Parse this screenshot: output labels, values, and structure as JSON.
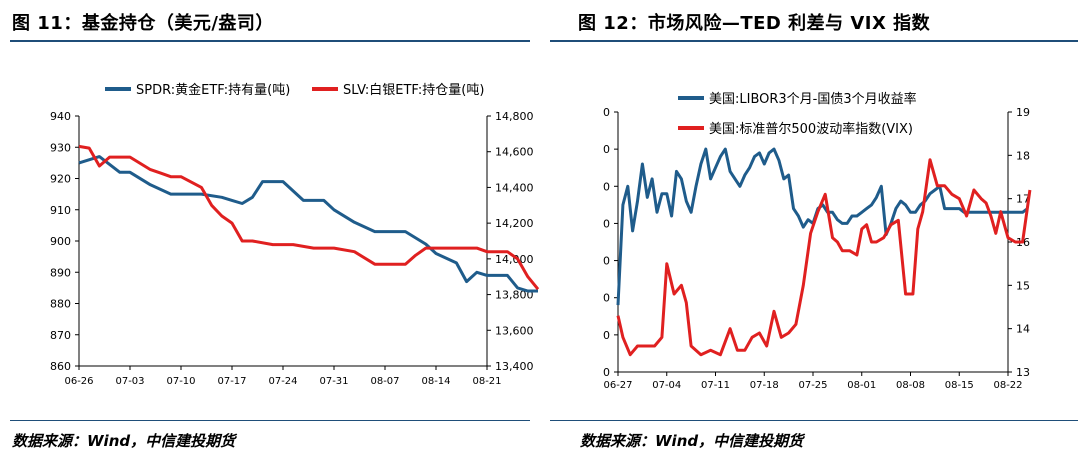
{
  "figures": [
    {
      "title": "图  11：基金持仓（美元/盎司）",
      "source": "数据来源：Wind，中信建投期货",
      "chart_data": {
        "type": "line",
        "categories": [
          "06-26",
          "07-03",
          "07-10",
          "07-17",
          "07-24",
          "07-31",
          "08-07",
          "08-14",
          "08-21"
        ],
        "ylim_left": [
          860,
          940
        ],
        "yticks_left": [
          "940",
          "930",
          "920",
          "910",
          "900",
          "890",
          "880",
          "870",
          "860"
        ],
        "ylim_right": [
          13400,
          14800
        ],
        "yticks_right": [
          "14,800",
          "14,600",
          "14,400",
          "14,200",
          "14,000",
          "13,800",
          "13,600",
          "13,400"
        ],
        "series": [
          {
            "name": "SPDR:黄金ETF:持有量(吨)",
            "color": "#1f5c8b",
            "axis": "left",
            "x": [
              0,
              0.4,
              0.8,
              1.0,
              1.4,
              1.8,
              2.0,
              2.4,
              2.8,
              3.0,
              3.2,
              3.4,
              3.6,
              3.8,
              4.0,
              4.2,
              4.4,
              4.6,
              4.8,
              5.0,
              5.4,
              5.8,
              6.0,
              6.4,
              6.8,
              7.0,
              7.4,
              7.6,
              7.8,
              8.0,
              8.4,
              8.6,
              8.8,
              9.0
            ],
            "y": [
              925,
              927,
              922,
              922,
              918,
              915,
              915,
              915,
              914,
              913,
              912,
              914,
              919,
              919,
              919,
              916,
              913,
              913,
              913,
              910,
              906,
              903,
              903,
              903,
              899,
              896,
              893,
              887,
              890,
              889,
              889,
              885,
              884,
              884
            ]
          },
          {
            "name": "SLV:白银ETF:持仓量(吨)",
            "color": "#e02020",
            "axis": "right",
            "x": [
              0,
              0.2,
              0.4,
              0.6,
              0.8,
              1.0,
              1.4,
              1.6,
              1.8,
              2.0,
              2.4,
              2.6,
              2.8,
              3.0,
              3.2,
              3.4,
              3.8,
              4.2,
              4.6,
              5.0,
              5.4,
              5.8,
              6.0,
              6.4,
              6.6,
              6.8,
              7.0,
              7.4,
              7.8,
              8.0,
              8.2,
              8.4,
              8.6,
              8.8,
              9.0
            ],
            "y": [
              14630,
              14620,
              14520,
              14570,
              14570,
              14570,
              14500,
              14480,
              14460,
              14460,
              14400,
              14300,
              14240,
              14200,
              14100,
              14100,
              14080,
              14080,
              14060,
              14060,
              14040,
              13970,
              13970,
              13970,
              14020,
              14060,
              14060,
              14060,
              14060,
              14040,
              14040,
              14040,
              14000,
              13900,
              13830
            ]
          }
        ]
      }
    },
    {
      "title": "图  12：市场风险—TED 利差与 VIX 指数",
      "source": "数据来源：Wind，中信建投期货",
      "chart_data": {
        "type": "line",
        "categories": [
          "06-27",
          "07-04",
          "07-11",
          "07-18",
          "07-25",
          "08-01",
          "08-08",
          "08-15",
          "08-22"
        ],
        "yticks_left": [
          "0",
          "0",
          "0",
          "0",
          "0",
          "0",
          "0",
          "0"
        ],
        "ylim_left": [
          0,
          7
        ],
        "yticks_right": [
          "19",
          "18",
          "17",
          "16",
          "15",
          "14",
          "13"
        ],
        "ylim_right": [
          13,
          19
        ],
        "series": [
          {
            "name": "美国:LIBOR3个月-国债3个月收益率",
            "color": "#1f5c8b",
            "axis": "left",
            "x": [
              0,
              0.1,
              0.2,
              0.3,
              0.4,
              0.5,
              0.6,
              0.7,
              0.8,
              0.9,
              1.0,
              1.1,
              1.2,
              1.3,
              1.4,
              1.5,
              1.6,
              1.7,
              1.8,
              1.9,
              2.0,
              2.1,
              2.2,
              2.3,
              2.4,
              2.5,
              2.6,
              2.7,
              2.8,
              2.9,
              3.0,
              3.1,
              3.2,
              3.3,
              3.4,
              3.5,
              3.6,
              3.7,
              3.8,
              3.9,
              4.0,
              4.1,
              4.2,
              4.3,
              4.4,
              4.5,
              4.6,
              4.7,
              4.8,
              4.9,
              5.0,
              5.1,
              5.2,
              5.3,
              5.4,
              5.5,
              5.6,
              5.7,
              5.8,
              5.9,
              6.0,
              6.1,
              6.2,
              6.3,
              6.4,
              6.5,
              6.6,
              6.7,
              6.8,
              6.9,
              7.0,
              7.1,
              7.2,
              7.3,
              7.4,
              7.5,
              7.6,
              7.7,
              7.8,
              7.9,
              8.0,
              8.1,
              8.2,
              8.3,
              8.4
            ],
            "y": [
              1.8,
              4.5,
              5.0,
              3.8,
              4.6,
              5.6,
              4.7,
              5.2,
              4.3,
              4.8,
              4.8,
              4.2,
              5.4,
              5.2,
              4.6,
              4.3,
              5.0,
              5.6,
              6.0,
              5.2,
              5.5,
              5.8,
              6.0,
              5.4,
              5.2,
              5.0,
              5.3,
              5.5,
              5.8,
              5.9,
              5.6,
              5.9,
              6.0,
              5.7,
              5.2,
              5.3,
              4.4,
              4.2,
              3.9,
              4.1,
              4.0,
              4.4,
              4.5,
              4.3,
              4.3,
              4.1,
              4.0,
              4.0,
              4.2,
              4.2,
              4.3,
              4.4,
              4.5,
              4.7,
              5.0,
              3.7,
              4.0,
              4.4,
              4.6,
              4.5,
              4.3,
              4.3,
              4.5,
              4.6,
              4.8,
              4.9,
              5.0,
              4.4,
              4.4,
              4.4,
              4.4,
              4.3,
              4.3,
              4.3,
              4.3,
              4.3,
              4.3,
              4.3,
              4.3,
              4.3,
              4.3,
              4.3,
              4.3,
              4.3,
              4.4
            ],
            "y_note": "left axis unlabelled"
          },
          {
            "name": "美国:标准普尔500波动率指数(VIX)",
            "color": "#e02020",
            "axis": "right",
            "x": [
              0,
              0.1,
              0.25,
              0.4,
              0.55,
              0.75,
              0.9,
              1.0,
              1.15,
              1.3,
              1.4,
              1.5,
              1.7,
              1.9,
              2.1,
              2.3,
              2.45,
              2.6,
              2.75,
              2.9,
              3.05,
              3.2,
              3.35,
              3.5,
              3.65,
              3.8,
              3.95,
              4.1,
              4.25,
              4.4,
              4.5,
              4.6,
              4.75,
              4.9,
              5.0,
              5.1,
              5.2,
              5.3,
              5.45,
              5.6,
              5.75,
              5.9,
              6.05,
              6.15,
              6.25,
              6.4,
              6.55,
              6.7,
              6.85,
              7.0,
              7.15,
              7.3,
              7.45,
              7.55,
              7.65,
              7.75,
              7.85,
              8.0,
              8.15,
              8.3,
              8.45
            ],
            "y": [
              14.3,
              13.8,
              13.4,
              13.6,
              13.6,
              13.6,
              13.8,
              15.5,
              14.8,
              15.0,
              14.6,
              13.6,
              13.4,
              13.5,
              13.4,
              14.0,
              13.5,
              13.5,
              13.8,
              13.9,
              13.6,
              14.4,
              13.8,
              13.9,
              14.1,
              15.0,
              16.2,
              16.7,
              17.1,
              16.1,
              16.0,
              15.8,
              15.8,
              15.7,
              16.3,
              16.4,
              16.0,
              16.0,
              16.1,
              16.4,
              16.5,
              14.8,
              14.8,
              16.3,
              16.7,
              17.9,
              17.3,
              17.3,
              17.1,
              17.0,
              16.6,
              17.2,
              17.0,
              16.9,
              16.6,
              16.2,
              16.7,
              16.1,
              16.0,
              16.0,
              17.2
            ]
          }
        ]
      }
    }
  ]
}
